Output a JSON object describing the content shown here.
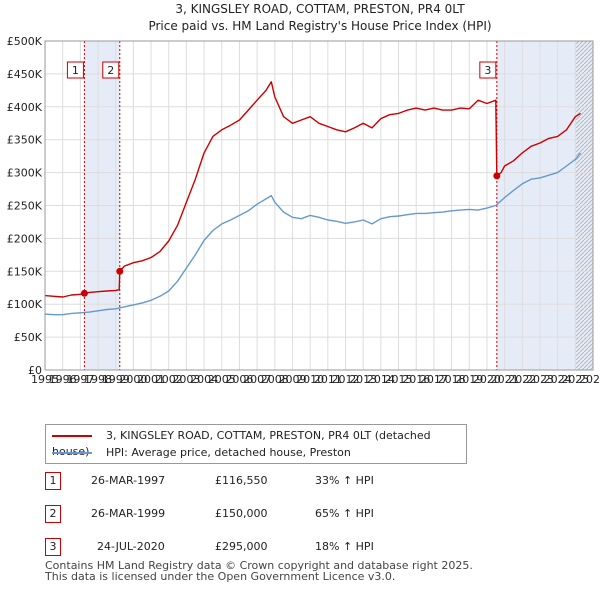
{
  "chart_data": {
    "type": "line",
    "title": "3, KINGSLEY ROAD, COTTAM, PRESTON, PR4 0LT",
    "subtitle": "Price paid vs. HM Land Registry's House Price Index (HPI)",
    "xlim": [
      1995,
      2026
    ],
    "ylim": [
      0,
      500000
    ],
    "x_ticks": [
      "1995",
      "1996",
      "1997",
      "1998",
      "1999",
      "2000",
      "2001",
      "2002",
      "2003",
      "2004",
      "2005",
      "2006",
      "2007",
      "2008",
      "2009",
      "2010",
      "2011",
      "2012",
      "2013",
      "2014",
      "2015",
      "2016",
      "2017",
      "2018",
      "2019",
      "2020",
      "2021",
      "2022",
      "2023",
      "2024",
      "2025",
      "2026"
    ],
    "y_ticks": [
      {
        "value": 0,
        "label": "£0"
      },
      {
        "value": 50000,
        "label": "£50K"
      },
      {
        "value": 100000,
        "label": "£100K"
      },
      {
        "value": 150000,
        "label": "£150K"
      },
      {
        "value": 200000,
        "label": "£200K"
      },
      {
        "value": 250000,
        "label": "£250K"
      },
      {
        "value": 300000,
        "label": "£300K"
      },
      {
        "value": 350000,
        "label": "£350K"
      },
      {
        "value": 400000,
        "label": "£400K"
      },
      {
        "value": 450000,
        "label": "£450K"
      },
      {
        "value": 500000,
        "label": "£500K"
      }
    ],
    "shaded_ranges": [
      [
        1997.23,
        1999.23
      ],
      [
        2020.56,
        2026
      ]
    ],
    "hatched_from": 2025.0,
    "series": [
      {
        "name": "3, KINGSLEY ROAD, COTTAM, PRESTON, PR4 0LT (detached house)",
        "color": "#cc0000",
        "x": [
          1995.0,
          1995.5,
          1996.0,
          1996.5,
          1997.0,
          1997.23,
          1997.5,
          1998.0,
          1998.5,
          1999.0,
          1999.2,
          1999.23,
          1999.5,
          2000.0,
          2000.5,
          2001.0,
          2001.5,
          2002.0,
          2002.5,
          2003.0,
          2003.5,
          2004.0,
          2004.5,
          2005.0,
          2005.5,
          2006.0,
          2006.5,
          2007.0,
          2007.5,
          2007.8,
          2008.0,
          2008.5,
          2009.0,
          2009.5,
          2010.0,
          2010.5,
          2011.0,
          2011.5,
          2012.0,
          2012.5,
          2013.0,
          2013.5,
          2014.0,
          2014.5,
          2015.0,
          2015.5,
          2016.0,
          2016.5,
          2017.0,
          2017.5,
          2018.0,
          2018.5,
          2019.0,
          2019.5,
          2020.0,
          2020.5,
          2020.56,
          2020.8,
          2021.0,
          2021.5,
          2022.0,
          2022.5,
          2023.0,
          2023.5,
          2024.0,
          2024.5,
          2025.0,
          2025.3
        ],
        "values": [
          113000,
          112000,
          111000,
          114000,
          115000,
          116550,
          118000,
          119000,
          120000,
          121000,
          122000,
          150000,
          158000,
          163000,
          166000,
          171000,
          180000,
          196000,
          220000,
          255000,
          290000,
          330000,
          355000,
          365000,
          372000,
          380000,
          395000,
          410000,
          425000,
          438000,
          415000,
          385000,
          375000,
          380000,
          385000,
          375000,
          370000,
          365000,
          362000,
          368000,
          375000,
          368000,
          382000,
          388000,
          390000,
          395000,
          398000,
          395000,
          398000,
          395000,
          395000,
          398000,
          397000,
          410000,
          405000,
          410000,
          295000,
          300000,
          310000,
          318000,
          330000,
          340000,
          345000,
          352000,
          355000,
          365000,
          385000,
          390000
        ]
      },
      {
        "name": "HPI: Average price, detached house, Preston",
        "color": "#6699cc",
        "x": [
          1995.0,
          1995.5,
          1996.0,
          1996.5,
          1997.0,
          1997.5,
          1998.0,
          1998.5,
          1999.0,
          1999.5,
          2000.0,
          2000.5,
          2001.0,
          2001.5,
          2002.0,
          2002.5,
          2003.0,
          2003.5,
          2004.0,
          2004.5,
          2005.0,
          2005.5,
          2006.0,
          2006.5,
          2007.0,
          2007.5,
          2007.8,
          2008.0,
          2008.5,
          2009.0,
          2009.5,
          2010.0,
          2010.5,
          2011.0,
          2011.5,
          2012.0,
          2012.5,
          2013.0,
          2013.5,
          2014.0,
          2014.5,
          2015.0,
          2015.5,
          2016.0,
          2016.5,
          2017.0,
          2017.5,
          2018.0,
          2018.5,
          2019.0,
          2019.5,
          2020.0,
          2020.5,
          2021.0,
          2021.5,
          2022.0,
          2022.5,
          2023.0,
          2023.5,
          2024.0,
          2024.5,
          2025.0,
          2025.3
        ],
        "values": [
          85000,
          84000,
          84000,
          86000,
          87000,
          88000,
          90000,
          92000,
          93000,
          96000,
          99000,
          102000,
          106000,
          112000,
          120000,
          135000,
          155000,
          175000,
          197000,
          212000,
          222000,
          228000,
          235000,
          242000,
          252000,
          260000,
          265000,
          255000,
          240000,
          232000,
          230000,
          235000,
          232000,
          228000,
          226000,
          223000,
          225000,
          228000,
          222000,
          230000,
          233000,
          234000,
          236000,
          238000,
          238000,
          239000,
          240000,
          242000,
          243000,
          244000,
          243000,
          246000,
          250000,
          262000,
          273000,
          283000,
          290000,
          292000,
          296000,
          300000,
          310000,
          320000,
          330000
        ]
      }
    ],
    "sale_markers": [
      {
        "label": "1",
        "x": 1997.23,
        "value": 116550
      },
      {
        "label": "2",
        "x": 1999.23,
        "value": 150000
      },
      {
        "label": "3",
        "x": 2020.56,
        "value": 295000
      }
    ]
  },
  "legend": {
    "items": [
      {
        "label": "3, KINGSLEY ROAD, COTTAM, PRESTON, PR4 0LT (detached house)",
        "color": "#cc0000"
      },
      {
        "label": "HPI: Average price, detached house, Preston",
        "color": "#6699cc"
      }
    ]
  },
  "sales": [
    {
      "num": "1",
      "date": "26-MAR-1997",
      "price": "£116,550",
      "hpi": "33% ↑ HPI"
    },
    {
      "num": "2",
      "date": "26-MAR-1999",
      "price": "£150,000",
      "hpi": "65% ↑ HPI"
    },
    {
      "num": "3",
      "date": "24-JUL-2020",
      "price": "£295,000",
      "hpi": "18% ↑ HPI"
    }
  ],
  "footer": {
    "line1": "Contains HM Land Registry data © Crown copyright and database right 2025.",
    "line2": "This data is licensed under the Open Government Licence v3.0."
  }
}
